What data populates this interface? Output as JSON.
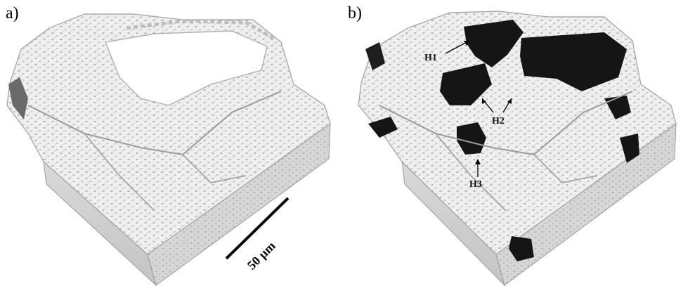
{
  "figure": {
    "panel_a_label": "a)",
    "panel_b_label": "b)",
    "scale_bar_label": "50 µm",
    "annotations": {
      "h1": "H1",
      "h2": "H2",
      "h3": "H3"
    },
    "colors": {
      "solid": "#ececec",
      "shadow": "#bdbdbd",
      "edge": "#9a9a9a",
      "dark_region": "#151515",
      "background": "#ffffff"
    }
  }
}
